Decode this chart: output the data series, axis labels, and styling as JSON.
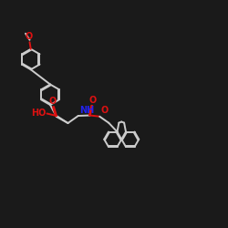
{
  "background": "#1a1a1a",
  "bond_color": "#cccccc",
  "oxygen_color": "#dd1111",
  "nitrogen_color": "#2222ee",
  "lw": 1.4,
  "figsize": [
    2.5,
    2.5
  ],
  "dpi": 100,
  "xlim": [
    0,
    10
  ],
  "ylim": [
    0,
    10
  ]
}
